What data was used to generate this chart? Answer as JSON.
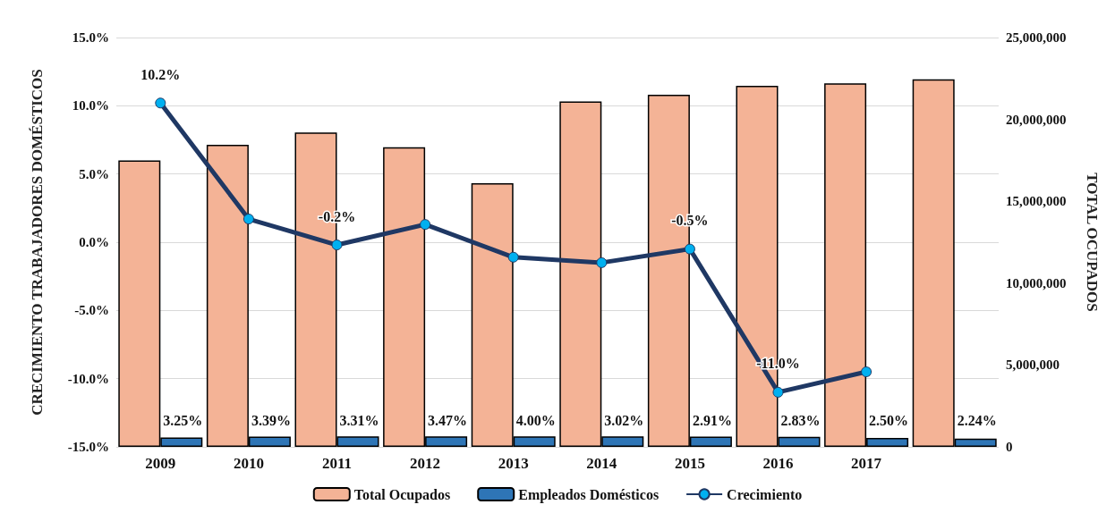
{
  "chart_data": {
    "type": "bar",
    "xlabel": null,
    "ylabel": "CRECIMIENTO TRABAJADORES DOMÉSTICOS",
    "y2label": "TOTAL OCUPADOS",
    "categories": [
      "2009",
      "2010",
      "2011",
      "2012",
      "2013",
      "2014",
      "2015",
      "2016",
      "2017",
      null
    ],
    "series": [
      {
        "name": "Total Ocupados",
        "type": "bar",
        "axis": "y2",
        "color": "#f4b396",
        "values": [
          17500000.0,
          18450000.0,
          19200000.0,
          18300000.0,
          16100000.0,
          21100000.0,
          21500000.0,
          22050000.0,
          22200000.0,
          22450000.0
        ]
      },
      {
        "name": "Empleados Domésticos",
        "type": "bar",
        "axis": "y2",
        "color": "#2e75b6",
        "values": [
          570000.0,
          630000.0,
          640000.0,
          640000.0,
          640000.0,
          640000.0,
          630000.0,
          620000.0,
          550000.0,
          500000.0
        ]
      },
      {
        "name": "Crecimiento",
        "type": "line",
        "color": "#1f3864",
        "values": [
          10.2,
          1.7,
          -0.2,
          1.3,
          -1.1,
          -1.5,
          -0.5,
          -11.0,
          -9.5,
          null
        ],
        "value_labels": [
          "10.2%",
          null,
          "-0.2%",
          null,
          null,
          null,
          "-0.5%",
          "-11.0%",
          null,
          null
        ]
      }
    ],
    "ylim": [
      -15,
      15
    ],
    "yticks": [
      {
        "value": -15,
        "label": "-15.0%"
      },
      {
        "value": -10,
        "label": "-10.0%"
      },
      {
        "value": -5,
        "label": "-5.0%"
      },
      {
        "value": 0,
        "label": "0.0%"
      },
      {
        "value": 5,
        "label": "5.0%"
      },
      {
        "value": 10,
        "label": "10.0%"
      },
      {
        "value": 15,
        "label": "15.0%"
      }
    ],
    "y2lim": [
      0,
      25000000
    ],
    "y2ticks": [
      {
        "value": 0,
        "label": "0"
      },
      {
        "value": 5000000,
        "label": "5,000,000"
      },
      {
        "value": 10000000,
        "label": "10,000,000"
      },
      {
        "value": 15000000,
        "label": "15,000,000"
      },
      {
        "value": 20000000,
        "label": "20,000,000"
      },
      {
        "value": 25000000,
        "label": "25,000,000"
      }
    ],
    "annotations": [
      "3.25%",
      "3.39%",
      "3.31%",
      "3.47%",
      "4.00%",
      "3.02%",
      "2.91%",
      "2.83%",
      "2.50%",
      "2.24%"
    ],
    "grid": "y",
    "legend": "bottom",
    "marker": "circle"
  }
}
